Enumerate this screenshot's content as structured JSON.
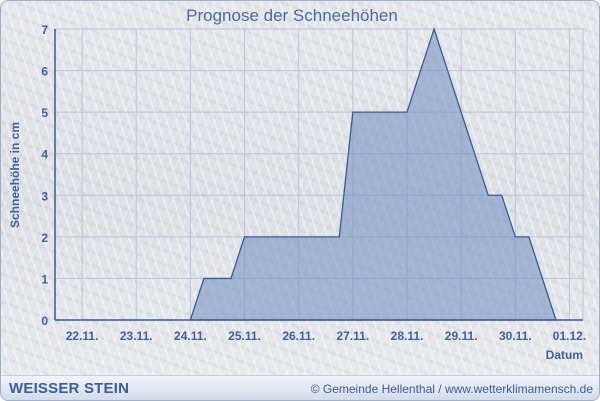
{
  "chart_data": {
    "type": "area",
    "title": "Prognose der Schneehöhen",
    "xlabel": "Datum",
    "ylabel": "Schneehöhe in cm",
    "x_ticks": [
      "22.11.",
      "23.11.",
      "24.11.",
      "25.11.",
      "26.11.",
      "27.11.",
      "28.11.",
      "29.11.",
      "30.11.",
      "01.12."
    ],
    "y_ticks": [
      "0",
      "1",
      "2",
      "3",
      "4",
      "5",
      "6",
      "7"
    ],
    "ylim": [
      0,
      7
    ],
    "xlim": [
      "21.11. 12:00",
      "01.12. 06:00"
    ],
    "grid": true,
    "points": [
      {
        "x": "24.11. 00:00",
        "y": 0
      },
      {
        "x": "24.11. 06:00",
        "y": 1
      },
      {
        "x": "24.11. 18:00",
        "y": 1
      },
      {
        "x": "25.11. 00:00",
        "y": 2
      },
      {
        "x": "26.11. 18:00",
        "y": 2
      },
      {
        "x": "27.11. 00:00",
        "y": 5
      },
      {
        "x": "28.11. 00:00",
        "y": 5
      },
      {
        "x": "28.11. 12:00",
        "y": 7
      },
      {
        "x": "29.11. 12:00",
        "y": 3
      },
      {
        "x": "29.11. 18:00",
        "y": 3
      },
      {
        "x": "30.11. 00:00",
        "y": 2
      },
      {
        "x": "30.11. 06:00",
        "y": 2
      },
      {
        "x": "30.11. 18:00",
        "y": 0
      }
    ],
    "colors": {
      "fill": "#6d8cc0",
      "line": "#3a5a98",
      "text": "#3f61a0",
      "grid": "#b8c6de"
    }
  },
  "footer": {
    "brand": "WEISSER STEIN",
    "copyright": "© Gemeinde Hellenthal / www.wetterklimamensch.de"
  }
}
